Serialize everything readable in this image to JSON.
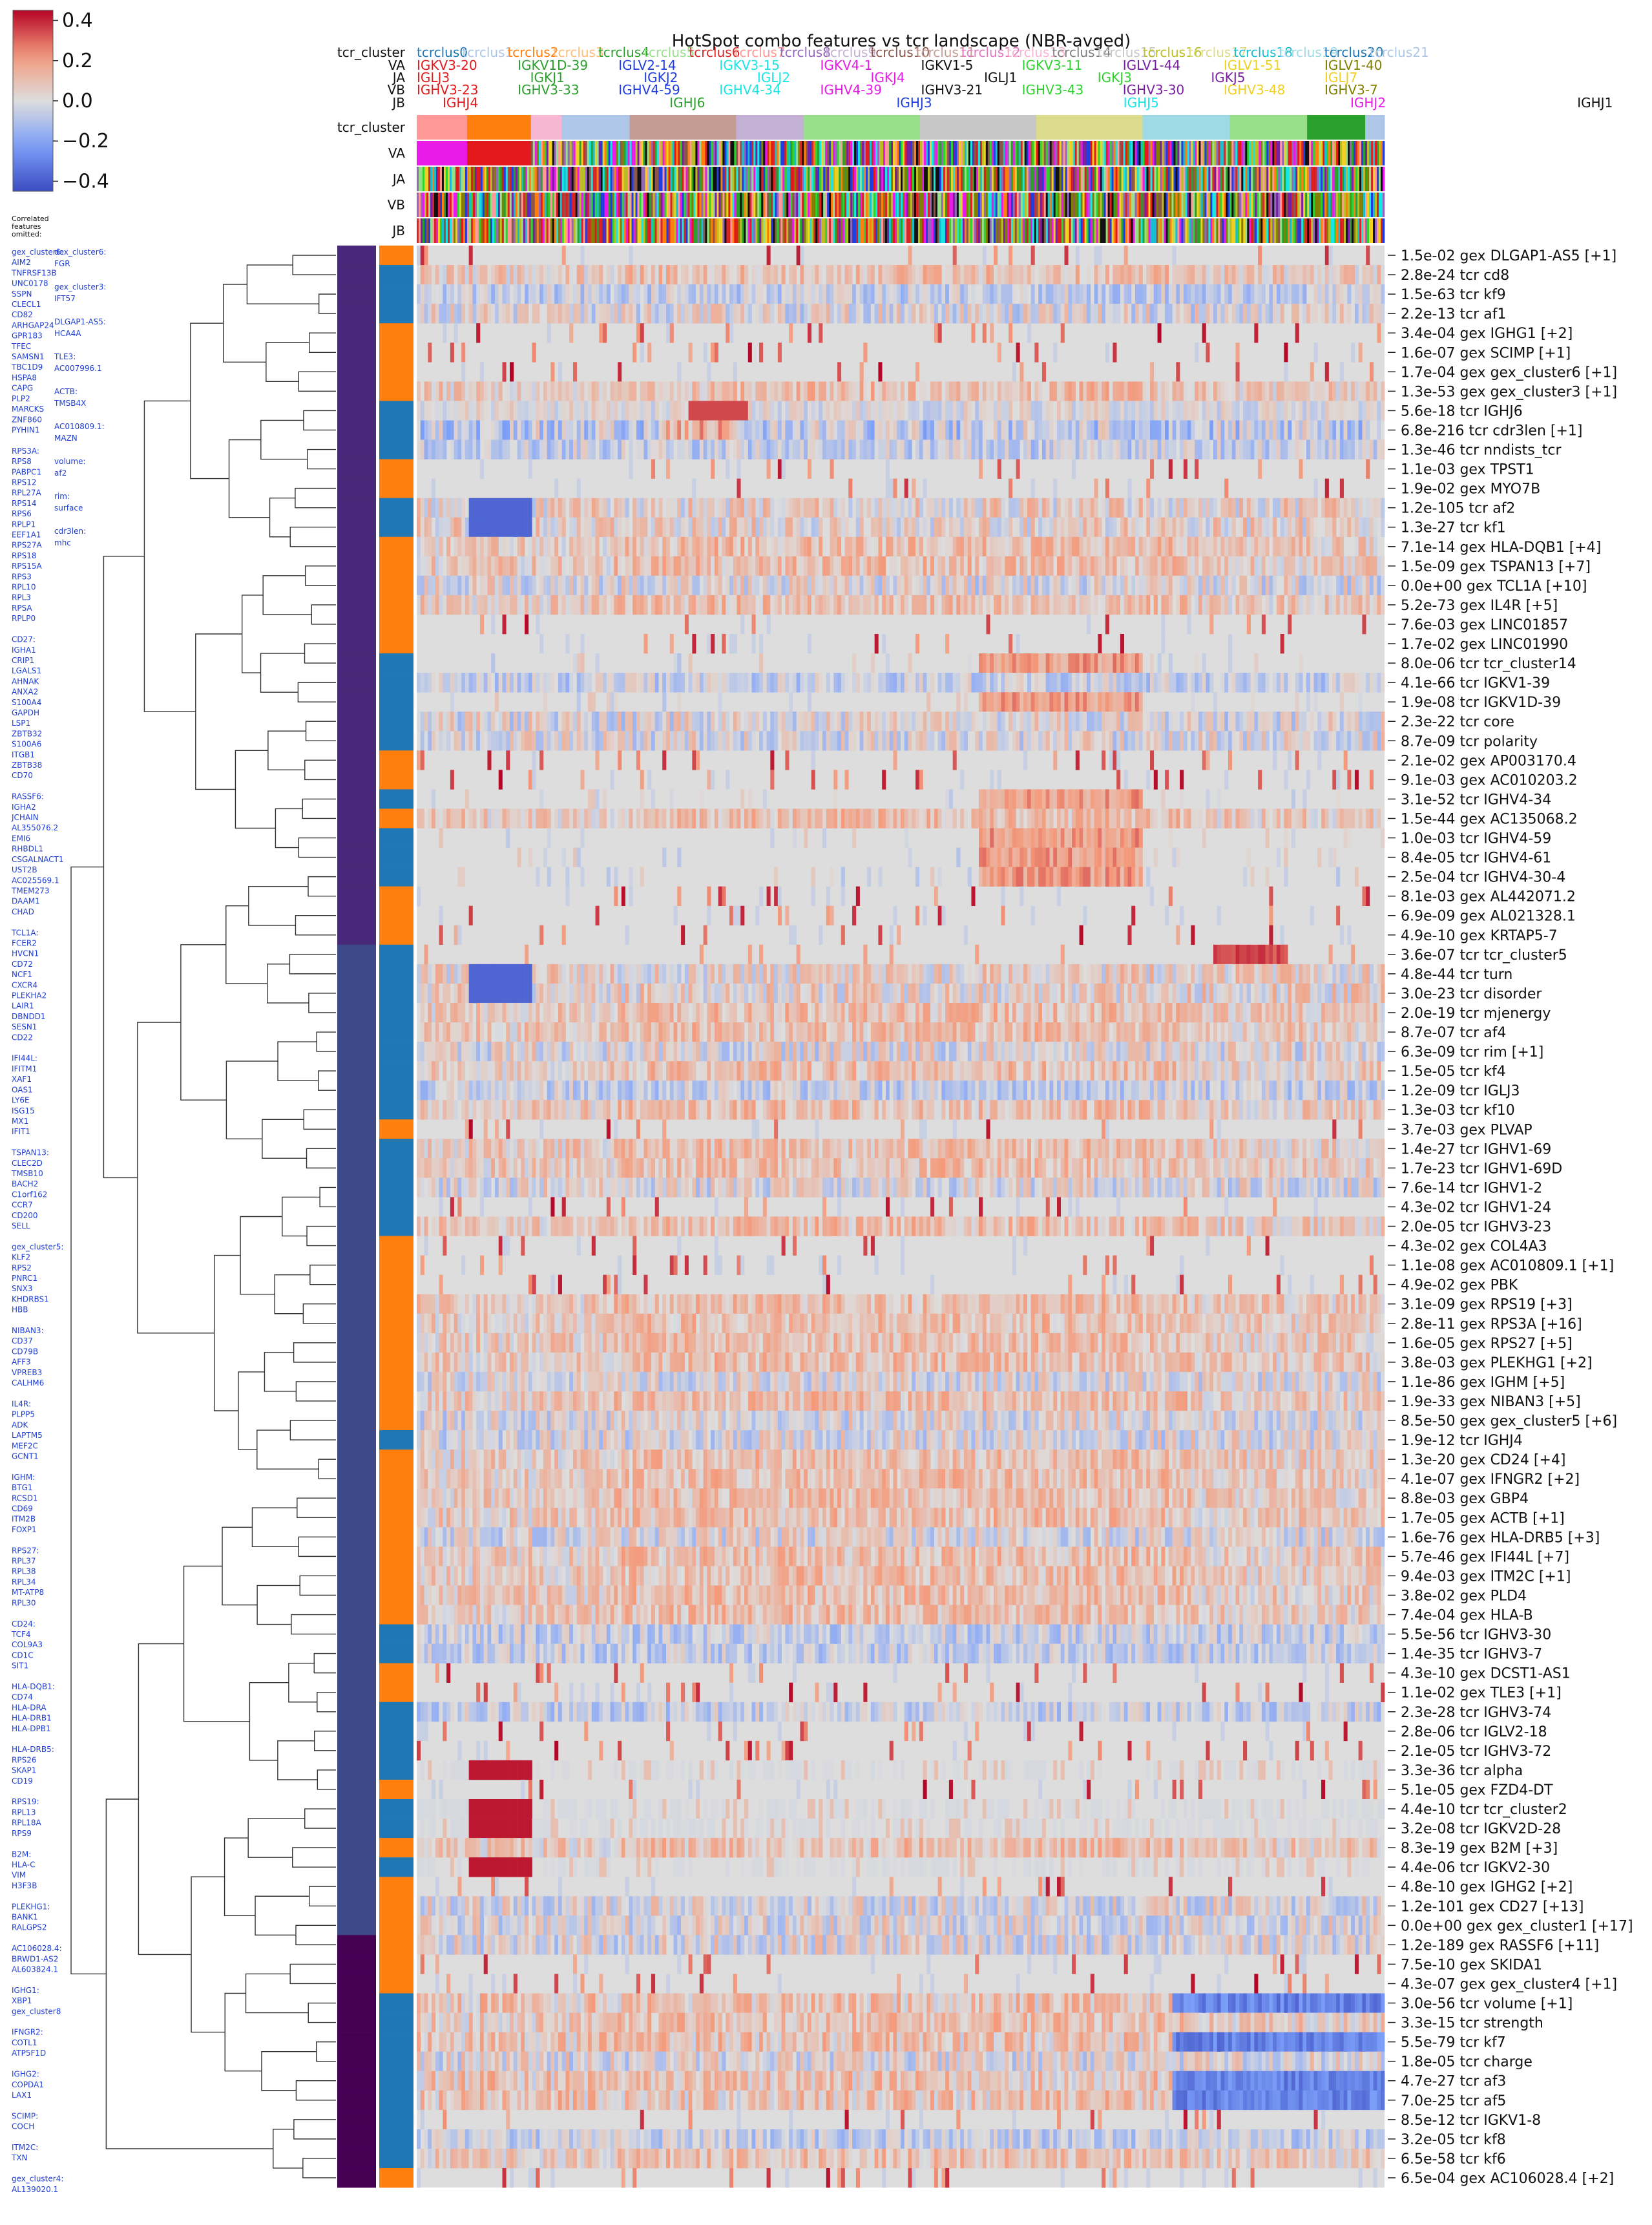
{
  "chart_data": {
    "type": "heatmap",
    "title": "HotSpot combo features vs tcr landscape (NBR-avged)",
    "colorbar": {
      "cmap": "coolwarm",
      "range": [
        -0.45,
        0.45
      ],
      "ticks": [
        "0.4",
        "0.2",
        "0.0",
        "−0.2",
        "−0.4"
      ],
      "tick_values": [
        0.4,
        0.2,
        0.0,
        -0.2,
        -0.4
      ]
    },
    "header_row_labels": [
      "tcr_cluster",
      "VA",
      "JA",
      "VB",
      "JB"
    ],
    "column_track_labels": [
      "tcr_cluster",
      "VA",
      "JA",
      "VB",
      "JB"
    ],
    "tcr_cluster_names": [
      "tcrclus0",
      "tcrclus1",
      "tcrclus2",
      "tcrclus3",
      "tcrclus4",
      "tcrclus5",
      "tcrclus6",
      "tcrclus7",
      "tcrclus8",
      "tcrclus9",
      "tcrclus10",
      "tcrclus11",
      "tcrclus12",
      "tcrclus13",
      "tcrclus14",
      "tcrclus15",
      "tcrclus16",
      "tcrclus17",
      "tcrclus18",
      "tcrclus19",
      "tcrclus20",
      "tcrclus21"
    ],
    "tcr_cluster_colors": [
      "#1f77b4",
      "#aec7e8",
      "#ff7f0e",
      "#ffbb78",
      "#2ca02c",
      "#98df8a",
      "#d62728",
      "#ff9896",
      "#9467bd",
      "#c5b0d5",
      "#8c564b",
      "#c49c94",
      "#e377c2",
      "#f7b6d2",
      "#7f7f7f",
      "#c7c7c7",
      "#bcbd22",
      "#dbdb8d",
      "#17becf",
      "#9edae5",
      "#1f77b4",
      "#aec7e8"
    ],
    "gene_header": {
      "VA": [
        {
          "text": "IGKV3-20",
          "color": "#e31a1c"
        },
        {
          "text": "IGKV1D-39",
          "color": "#2ca02c"
        },
        {
          "text": "IGLV2-14",
          "color": "#1f3de0"
        },
        {
          "text": "IGKV3-15",
          "color": "#17e6e6"
        },
        {
          "text": "IGKV4-1",
          "color": "#e81ae8"
        },
        {
          "text": "IGKV1-5",
          "color": "#111111"
        },
        {
          "text": "IGKV3-11",
          "color": "#2fd22f"
        },
        {
          "text": "IGLV1-44",
          "color": "#7b1fa2"
        },
        {
          "text": "IGLV1-51",
          "color": "#f0d020"
        },
        {
          "text": "IGLV1-40",
          "color": "#808000"
        }
      ],
      "JA": [
        {
          "text": "IGLJ3",
          "color": "#e31a1c"
        },
        {
          "text": "IGKJ1",
          "color": "#2ca02c"
        },
        {
          "text": "IGKJ2",
          "color": "#1f3de0"
        },
        {
          "text": "IGLJ2",
          "color": "#17e6e6"
        },
        {
          "text": "IGKJ4",
          "color": "#e81ae8"
        },
        {
          "text": "IGLJ1",
          "color": "#111111"
        },
        {
          "text": "IGKJ3",
          "color": "#2fd22f"
        },
        {
          "text": "IGKJ5",
          "color": "#7b1fa2"
        },
        {
          "text": "IGLJ7",
          "color": "#f0d020"
        }
      ],
      "VB": [
        {
          "text": "IGHV3-23",
          "color": "#e31a1c"
        },
        {
          "text": "IGHV3-33",
          "color": "#2ca02c"
        },
        {
          "text": "IGHV4-59",
          "color": "#1f3de0"
        },
        {
          "text": "IGHV4-34",
          "color": "#17e6e6"
        },
        {
          "text": "IGHV4-39",
          "color": "#e81ae8"
        },
        {
          "text": "IGHV3-21",
          "color": "#111111"
        },
        {
          "text": "IGHV3-43",
          "color": "#2fd22f"
        },
        {
          "text": "IGHV3-30",
          "color": "#7b1fa2"
        },
        {
          "text": "IGHV3-48",
          "color": "#f0d020"
        },
        {
          "text": "IGHV3-7",
          "color": "#808000"
        }
      ],
      "JB": [
        {
          "text": "IGHJ4",
          "color": "#e31a1c"
        },
        {
          "text": "IGHJ6",
          "color": "#2ca02c"
        },
        {
          "text": "IGHJ3",
          "color": "#1f3de0"
        },
        {
          "text": "IGHJ5",
          "color": "#17e6e6"
        },
        {
          "text": "IGHJ2",
          "color": "#e81ae8"
        },
        {
          "text": "IGHJ1",
          "color": "#111111"
        }
      ]
    },
    "rows": [
      {
        "label": "1.5e-02 gex DLGAP1-AS5 [+1]",
        "type": "gex",
        "profile": "sparse_pos"
      },
      {
        "label": "2.8e-24 tcr cd8",
        "type": "tcr",
        "profile": "mixed_pos"
      },
      {
        "label": "1.5e-63 tcr kf9",
        "type": "tcr",
        "profile": "mixed_neg"
      },
      {
        "label": "2.2e-13 tcr af1",
        "type": "tcr",
        "profile": "mixed"
      },
      {
        "label": "3.4e-04 gex IGHG1 [+2]",
        "type": "gex",
        "profile": "sparse_pos"
      },
      {
        "label": "1.6e-07 gex SCIMP [+1]",
        "type": "gex",
        "profile": "sparse_pos"
      },
      {
        "label": "1.7e-04 gex gex_cluster6 [+1]",
        "type": "gex",
        "profile": "sparse_pos"
      },
      {
        "label": "1.3e-53 gex gex_cluster3 [+1]",
        "type": "gex",
        "profile": "mixed_pos"
      },
      {
        "label": "5.6e-18 tcr IGHJ6",
        "type": "tcr",
        "profile": "hotspot_mid"
      },
      {
        "label": "6.8e-216 tcr cdr3len [+1]",
        "type": "tcr",
        "profile": "strong_neg"
      },
      {
        "label": "1.3e-46 tcr nndists_tcr",
        "type": "tcr",
        "profile": "mixed_neg"
      },
      {
        "label": "1.1e-03 gex TPST1",
        "type": "gex",
        "profile": "sparse_pos"
      },
      {
        "label": "1.9e-02 gex MYO7B",
        "type": "gex",
        "profile": "sparse_pos"
      },
      {
        "label": "1.2e-105 tcr af2",
        "type": "tcr",
        "profile": "clus1_neg"
      },
      {
        "label": "1.3e-27 tcr kf1",
        "type": "tcr",
        "profile": "clus1_neg"
      },
      {
        "label": "7.1e-14 gex HLA-DQB1 [+4]",
        "type": "gex",
        "profile": "mixed_pos"
      },
      {
        "label": "1.5e-09 gex TSPAN13 [+7]",
        "type": "gex",
        "profile": "mixed_pos"
      },
      {
        "label": "0.0e+00 gex TCL1A [+10]",
        "type": "gex",
        "profile": "mixed"
      },
      {
        "label": "5.2e-73 gex IL4R [+5]",
        "type": "gex",
        "profile": "mixed_pos"
      },
      {
        "label": "7.6e-03 gex LINC01857",
        "type": "gex",
        "profile": "sparse_pos"
      },
      {
        "label": "1.7e-02 gex LINC01990",
        "type": "gex",
        "profile": "sparse_pos"
      },
      {
        "label": "8.0e-06 tcr tcr_cluster14",
        "type": "tcr",
        "profile": "hotspot_c14"
      },
      {
        "label": "4.1e-66 tcr IGKV1-39",
        "type": "tcr",
        "profile": "mixed_neg"
      },
      {
        "label": "1.9e-08 tcr IGKV1D-39",
        "type": "tcr",
        "profile": "hotspot_c14"
      },
      {
        "label": "2.3e-22 tcr core",
        "type": "tcr",
        "profile": "mixed"
      },
      {
        "label": "8.7e-09 tcr polarity",
        "type": "tcr",
        "profile": "mixed"
      },
      {
        "label": "2.1e-02 gex AP003170.4",
        "type": "gex",
        "profile": "sparse_pos"
      },
      {
        "label": "9.1e-03 gex AC010203.2",
        "type": "gex",
        "profile": "sparse_pos"
      },
      {
        "label": "3.1e-52 tcr IGHV4-34",
        "type": "tcr",
        "profile": "hotspot_c14"
      },
      {
        "label": "1.5e-44 gex AC135068.2",
        "type": "gex",
        "profile": "mixed_pos"
      },
      {
        "label": "1.0e-03 tcr IGHV4-59",
        "type": "tcr",
        "profile": "hotspot_c14"
      },
      {
        "label": "8.4e-05 tcr IGHV4-61",
        "type": "tcr",
        "profile": "hotspot_c14"
      },
      {
        "label": "2.5e-04 tcr IGHV4-30-4",
        "type": "tcr",
        "profile": "hotspot_c14"
      },
      {
        "label": "8.1e-03 gex AL442071.2",
        "type": "gex",
        "profile": "sparse_pos"
      },
      {
        "label": "6.9e-09 gex AL021328.1",
        "type": "gex",
        "profile": "sparse_pos"
      },
      {
        "label": "4.9e-10 gex KRTAP5-7",
        "type": "gex",
        "profile": "sparse_pos"
      },
      {
        "label": "3.6e-07 tcr tcr_cluster5",
        "type": "tcr",
        "profile": "hotspot_c5"
      },
      {
        "label": "4.8e-44 tcr turn",
        "type": "tcr",
        "profile": "clus1_neg"
      },
      {
        "label": "3.0e-23 tcr disorder",
        "type": "tcr",
        "profile": "clus1_neg"
      },
      {
        "label": "2.0e-19 tcr mjenergy",
        "type": "tcr",
        "profile": "mixed_pos"
      },
      {
        "label": "8.7e-07 tcr af4",
        "type": "tcr",
        "profile": "mixed_pos"
      },
      {
        "label": "6.3e-09 tcr rim [+1]",
        "type": "tcr",
        "profile": "mixed"
      },
      {
        "label": "1.5e-05 tcr kf4",
        "type": "tcr",
        "profile": "mixed_pos"
      },
      {
        "label": "1.2e-09 tcr IGLJ3",
        "type": "tcr",
        "profile": "mixed_neg"
      },
      {
        "label": "1.3e-03 tcr kf10",
        "type": "tcr",
        "profile": "mixed_pos"
      },
      {
        "label": "3.7e-03 gex PLVAP",
        "type": "gex",
        "profile": "sparse_pos"
      },
      {
        "label": "1.4e-27 tcr IGHV1-69",
        "type": "tcr",
        "profile": "mixed_pos"
      },
      {
        "label": "1.7e-23 tcr IGHV1-69D",
        "type": "tcr",
        "profile": "mixed_pos"
      },
      {
        "label": "7.6e-14 tcr IGHV1-2",
        "type": "tcr",
        "profile": "mixed"
      },
      {
        "label": "4.3e-02 tcr IGHV1-24",
        "type": "tcr",
        "profile": "sparse_pos"
      },
      {
        "label": "2.0e-05 tcr IGHV3-23",
        "type": "tcr",
        "profile": "mixed_pos"
      },
      {
        "label": "4.3e-02 gex COL4A3",
        "type": "gex",
        "profile": "sparse_pos"
      },
      {
        "label": "1.1e-08 gex AC010809.1 [+1]",
        "type": "gex",
        "profile": "sparse_pos"
      },
      {
        "label": "4.9e-02 gex PBK",
        "type": "gex",
        "profile": "sparse_pos"
      },
      {
        "label": "3.1e-09 gex RPS19 [+3]",
        "type": "gex",
        "profile": "mixed_pos"
      },
      {
        "label": "2.8e-11 gex RPS3A [+16]",
        "type": "gex",
        "profile": "mixed_pos"
      },
      {
        "label": "1.6e-05 gex RPS27 [+5]",
        "type": "gex",
        "profile": "mixed_pos"
      },
      {
        "label": "3.8e-03 gex PLEKHG1 [+2]",
        "type": "gex",
        "profile": "mixed_pos"
      },
      {
        "label": "1.1e-86 gex IGHM [+5]",
        "type": "gex",
        "profile": "mixed"
      },
      {
        "label": "1.9e-33 gex NIBAN3 [+5]",
        "type": "gex",
        "profile": "mixed_pos"
      },
      {
        "label": "8.5e-50 gex gex_cluster5 [+6]",
        "type": "gex",
        "profile": "mixed"
      },
      {
        "label": "1.9e-12 tcr IGHJ4",
        "type": "tcr",
        "profile": "mixed"
      },
      {
        "label": "1.3e-20 gex CD24 [+4]",
        "type": "gex",
        "profile": "mixed_pos"
      },
      {
        "label": "4.1e-07 gex IFNGR2 [+2]",
        "type": "gex",
        "profile": "mixed_pos"
      },
      {
        "label": "8.8e-03 gex GBP4",
        "type": "gex",
        "profile": "mixed_pos"
      },
      {
        "label": "1.7e-05 gex ACTB [+1]",
        "type": "gex",
        "profile": "mixed_pos"
      },
      {
        "label": "1.6e-76 gex HLA-DRB5 [+3]",
        "type": "gex",
        "profile": "mixed"
      },
      {
        "label": "5.7e-46 gex IFI44L [+7]",
        "type": "gex",
        "profile": "mixed_pos"
      },
      {
        "label": "9.4e-03 gex ITM2C [+1]",
        "type": "gex",
        "profile": "mixed_pos"
      },
      {
        "label": "3.8e-02 gex PLD4",
        "type": "gex",
        "profile": "mixed_pos"
      },
      {
        "label": "7.4e-04 gex HLA-B",
        "type": "gex",
        "profile": "mixed_pos"
      },
      {
        "label": "5.5e-56 tcr IGHV3-30",
        "type": "tcr",
        "profile": "mixed_neg"
      },
      {
        "label": "1.4e-35 tcr IGHV3-7",
        "type": "tcr",
        "profile": "mixed_neg"
      },
      {
        "label": "4.3e-10 gex DCST1-AS1",
        "type": "gex",
        "profile": "sparse_pos"
      },
      {
        "label": "1.1e-02 gex TLE3 [+1]",
        "type": "gex",
        "profile": "sparse_pos"
      },
      {
        "label": "2.3e-28 tcr IGHV3-74",
        "type": "tcr",
        "profile": "mixed_neg"
      },
      {
        "label": "2.8e-06 tcr IGLV2-18",
        "type": "tcr",
        "profile": "sparse_pos"
      },
      {
        "label": "2.1e-05 tcr IGHV3-72",
        "type": "tcr",
        "profile": "sparse_pos"
      },
      {
        "label": "3.3e-36 tcr alpha",
        "type": "tcr",
        "profile": "clus1_pos"
      },
      {
        "label": "5.1e-05 gex FZD4-DT",
        "type": "gex",
        "profile": "sparse_pos"
      },
      {
        "label": "4.4e-10 tcr tcr_cluster2",
        "type": "tcr",
        "profile": "clus1_pos"
      },
      {
        "label": "3.2e-08 tcr IGKV2D-28",
        "type": "tcr",
        "profile": "clus1_pos"
      },
      {
        "label": "8.3e-19 gex B2M [+3]",
        "type": "gex",
        "profile": "mixed_pos"
      },
      {
        "label": "4.4e-06 tcr IGKV2-30",
        "type": "tcr",
        "profile": "clus1_pos"
      },
      {
        "label": "4.8e-10 gex IGHG2 [+2]",
        "type": "gex",
        "profile": "sparse_pos"
      },
      {
        "label": "1.2e-101 gex CD27 [+13]",
        "type": "gex",
        "profile": "mixed"
      },
      {
        "label": "0.0e+00 gex gex_cluster1 [+17]",
        "type": "gex",
        "profile": "mixed"
      },
      {
        "label": "1.2e-189 gex RASSF6 [+11]",
        "type": "gex",
        "profile": "mixed"
      },
      {
        "label": "7.5e-10 gex SKIDA1",
        "type": "gex",
        "profile": "sparse_pos"
      },
      {
        "label": "4.3e-07 gex gex_cluster4 [+1]",
        "type": "gex",
        "profile": "sparse_pos"
      },
      {
        "label": "3.0e-56 tcr volume [+1]",
        "type": "tcr",
        "profile": "strong_pos_end_neg"
      },
      {
        "label": "3.3e-15 tcr strength",
        "type": "tcr",
        "profile": "mixed_pos"
      },
      {
        "label": "5.5e-79 tcr kf7",
        "type": "tcr",
        "profile": "strong_pos_end_neg"
      },
      {
        "label": "1.8e-05 tcr charge",
        "type": "tcr",
        "profile": "mixed"
      },
      {
        "label": "4.7e-27 tcr af3",
        "type": "tcr",
        "profile": "strong_pos_end_neg"
      },
      {
        "label": "7.0e-25 tcr af5",
        "type": "tcr",
        "profile": "strong_pos_end_neg"
      },
      {
        "label": "8.5e-12 tcr IGKV1-8",
        "type": "tcr",
        "profile": "sparse_pos"
      },
      {
        "label": "3.2e-05 tcr kf8",
        "type": "tcr",
        "profile": "mixed_neg"
      },
      {
        "label": "6.5e-58 tcr kf6",
        "type": "tcr",
        "profile": "mixed_pos"
      },
      {
        "label": "6.5e-04 gex AC106028.4 [+2]",
        "type": "gex",
        "profile": "sparse_pos"
      }
    ],
    "left_annotation_colors": {
      "gex": "#ff7f0e",
      "tcr": "#1f77b4"
    },
    "correlated_features_header": [
      "Correlated",
      "features",
      "omitted:"
    ],
    "omitted_gene_columns": [
      [
        "gex_cluster6:",
        "AIM2",
        "TNFRSF13B",
        "UNC0178",
        "SSPN",
        "CLECL1",
        "CD82",
        "ARHGAP24",
        "GPR183",
        "TFEC",
        "SAMSN1",
        "TBC1D9",
        "HSPA8",
        "CAPG",
        "PLP2",
        "MARCKS",
        "ZNF860",
        "PYHIN1",
        "",
        "RPS3A:",
        "RPS8",
        "PABPC1",
        "RPS12",
        "RPL27A",
        "RPS14",
        "RPS6",
        "RPLP1",
        "EEF1A1",
        "RPS27A",
        "RPS18",
        "RPS15A",
        "RPS3",
        "RPL10",
        "RPL3",
        "RPSA",
        "RPLP0",
        "",
        "CD27:",
        "IGHA1",
        "CRIP1",
        "LGALS1",
        "AHNAK",
        "ANXA2",
        "S100A4",
        "GAPDH",
        "LSP1",
        "ZBTB32",
        "S100A6",
        "ITGB1",
        "ZBTB38",
        "CD70",
        "",
        "RASSF6:",
        "IGHA2",
        "JCHAIN",
        "AL355076.2",
        "EMI6",
        "RHBDL1",
        "CSGALNACT1",
        "UST2B",
        "AC025569.1",
        "TMEM273",
        "DAAM1",
        "CHAD",
        "",
        "TCL1A:",
        "FCER2",
        "HVCN1",
        "CD72",
        "NCF1",
        "CXCR4",
        "PLEKHA2",
        "LAIR1",
        "DBNDD1",
        "SESN1",
        "CD22",
        "",
        "IFI44L:",
        "IFITM1",
        "XAF1",
        "OAS1",
        "LY6E",
        "ISG15",
        "MX1",
        "IFIT1",
        "",
        "TSPAN13:",
        "CLEC2D",
        "TMSB10",
        "BACH2",
        "C1orf162",
        "CCR7",
        "CD200",
        "SELL",
        "",
        "gex_cluster5:",
        "KLF2",
        "RPS2",
        "PNRC1",
        "SNX3",
        "KHDRBS1",
        "HBB",
        "",
        "NIBAN3:",
        "CD37",
        "CD79B",
        "AFF3",
        "VPREB3",
        "CALHM6",
        "",
        "IL4R:",
        "PLPP5",
        "ADK",
        "LAPTM5",
        "MEF2C",
        "GCNT1",
        "",
        "IGHM:",
        "BTG1",
        "RCSD1",
        "CD69",
        "ITM2B",
        "FOXP1",
        "",
        "RPS27:",
        "RPL37",
        "RPL38",
        "RPL34",
        "MT-ATP8",
        "RPL30",
        "",
        "CD24:",
        "TCF4",
        "COL9A3",
        "CD1C",
        "SIT1",
        "",
        "HLA-DQB1:",
        "CD74",
        "HLA-DRA",
        "HLA-DRB1",
        "HLA-DPB1",
        "",
        "HLA-DRB5:",
        "RPS26",
        "SKAP1",
        "CD19",
        "",
        "RPS19:",
        "RPL13",
        "RPL18A",
        "RPS9",
        "",
        "B2M:",
        "HLA-C",
        "VIM",
        "H3F3B",
        "",
        "PLEKHG1:",
        "BANK1",
        "RALGPS2",
        "",
        "AC106028.4:",
        "BRWD1-AS2",
        "AL603824.1",
        "",
        "IGHG1:",
        "XBP1",
        "gex_cluster8",
        "",
        "IFNGR2:",
        "COTL1",
        "ATP5F1D",
        "",
        "IGHG2:",
        "COPDA1",
        "LAX1",
        "",
        "SCIMP:",
        "COCH",
        "",
        "ITM2C:",
        "TXN",
        "",
        "gex_cluster4:",
        "AL139020.1"
      ],
      [
        "dex_cluster6:",
        "FGR",
        "",
        "gex_cluster3:",
        "IFT57",
        "",
        "DLGAP1-AS5:",
        "HCA4A",
        "",
        "TLE3:",
        "AC007996.1",
        "",
        "ACTB:",
        "TMSB4X",
        "",
        "AC010809.1:",
        "MAZN",
        "",
        "volume:",
        "af2",
        "",
        "rim:",
        "surface",
        "",
        "cdr3len:",
        "mhc"
      ]
    ],
    "row_side_palette": [
      "#440154",
      "#482878",
      "#3e4989",
      "#31688e",
      "#26828e",
      "#1f9e89",
      "#35b779",
      "#6ece58",
      "#b5de2b",
      "#fde725"
    ],
    "legend": "top-left colorbar"
  }
}
